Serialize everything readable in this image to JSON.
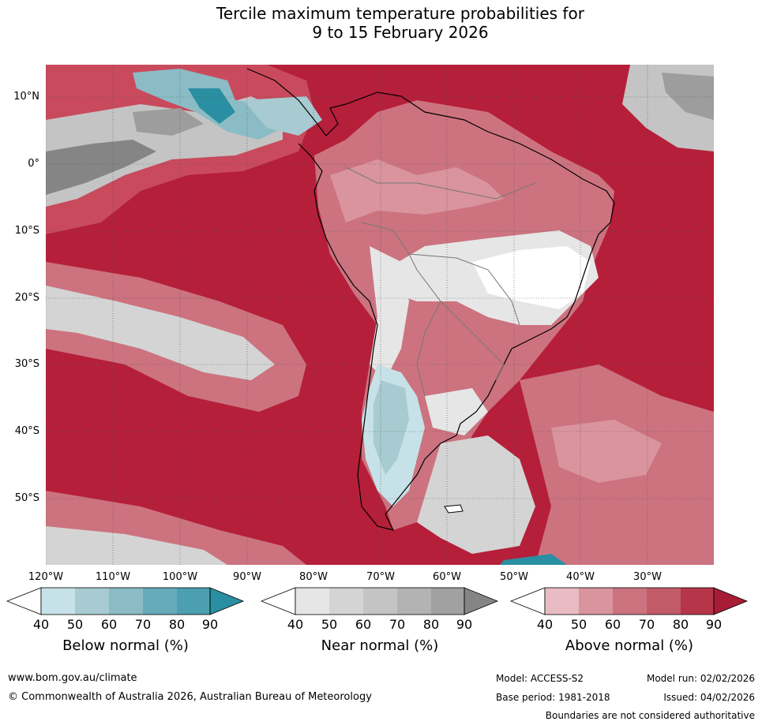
{
  "title": {
    "line1": "Tercile maximum temperature probabilities for",
    "line2": "9 to 15 February 2026"
  },
  "map": {
    "lat_labels": [
      "10°N",
      "0°",
      "10°S",
      "20°S",
      "30°S",
      "40°S",
      "50°S"
    ],
    "lon_labels": [
      "120°W",
      "110°W",
      "100°W",
      "90°W",
      "80°W",
      "70°W",
      "60°W",
      "50°W",
      "40°W",
      "30°W"
    ],
    "region": "South America and surrounding Pacific/Atlantic oceans"
  },
  "legends": [
    {
      "title": "Below normal (%)",
      "ticks": [
        "40",
        "50",
        "60",
        "70",
        "80",
        "90"
      ],
      "colors": [
        "#ffffff",
        "#c6e1e7",
        "#a7cbd1",
        "#8bbcc5",
        "#66abb9",
        "#4b9fb0",
        "#2a8fa2"
      ]
    },
    {
      "title": "Near normal (%)",
      "ticks": [
        "40",
        "50",
        "60",
        "70",
        "80",
        "90"
      ],
      "colors": [
        "#ffffff",
        "#e6e6e6",
        "#d4d4d4",
        "#c4c4c4",
        "#b3b3b3",
        "#a1a1a1",
        "#858585"
      ]
    },
    {
      "title": "Above normal (%)",
      "ticks": [
        "40",
        "50",
        "60",
        "70",
        "80",
        "90"
      ],
      "colors": [
        "#ffffff",
        "#e8bcc2",
        "#d9949e",
        "#cc737f",
        "#c25a68",
        "#b73549",
        "#a81c36"
      ]
    }
  ],
  "footer": {
    "url": "www.bom.gov.au/climate",
    "copyright": "© Commonwealth of Australia 2026, Australian Bureau of Meteorology",
    "model": "Model: ACCESS-S2",
    "base_period": "Base period: 1981-2018",
    "model_run": "Model run: 02/02/2026",
    "issued": "Issued: 04/02/2026",
    "disclaimer": "Boundaries are not considered authoritative"
  }
}
